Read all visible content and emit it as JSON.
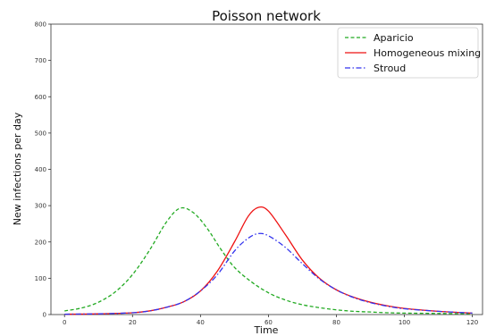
{
  "chart_data": {
    "type": "line",
    "title": "Poisson network",
    "xlabel": "Time",
    "ylabel": "New infections per day",
    "xlim": [
      -4,
      123
    ],
    "ylim": [
      0,
      800
    ],
    "xticks": [
      0,
      20,
      40,
      60,
      80,
      100,
      120
    ],
    "yticks": [
      0,
      100,
      200,
      300,
      400,
      500,
      600,
      700,
      800
    ],
    "grid": false,
    "legend_position": "top-right",
    "series": [
      {
        "name": "Aparicio",
        "color": "#22aa22",
        "linestyle": "dashed",
        "x": [
          0,
          5,
          10,
          15,
          20,
          25,
          30,
          34,
          38,
          42,
          46,
          50,
          55,
          60,
          65,
          70,
          75,
          80,
          85,
          90,
          95,
          100,
          110,
          120
        ],
        "y": [
          10,
          18,
          34,
          63,
          110,
          177,
          255,
          293,
          280,
          237,
          180,
          130,
          90,
          60,
          40,
          27,
          19,
          13,
          9,
          7,
          5,
          4,
          3,
          2
        ]
      },
      {
        "name": "Homogeneous mixing",
        "color": "#ee1111",
        "linestyle": "solid",
        "x": [
          0,
          10,
          20,
          25,
          30,
          35,
          40,
          45,
          50,
          54,
          57,
          60,
          65,
          70,
          75,
          80,
          85,
          90,
          95,
          100,
          110,
          120
        ],
        "y": [
          1,
          2,
          5,
          10,
          20,
          35,
          65,
          120,
          200,
          270,
          295,
          285,
          220,
          150,
          100,
          68,
          48,
          34,
          24,
          17,
          9,
          4
        ]
      },
      {
        "name": "Stroud",
        "color": "#3333ee",
        "linestyle": "dashdot",
        "x": [
          0,
          10,
          20,
          25,
          30,
          35,
          40,
          45,
          50,
          54,
          57,
          60,
          65,
          70,
          75,
          80,
          85,
          90,
          95,
          100,
          110,
          120
        ],
        "y": [
          1,
          2,
          5,
          10,
          20,
          35,
          65,
          110,
          175,
          210,
          223,
          217,
          185,
          140,
          98,
          68,
          47,
          33,
          23,
          16,
          9,
          4
        ]
      }
    ]
  }
}
